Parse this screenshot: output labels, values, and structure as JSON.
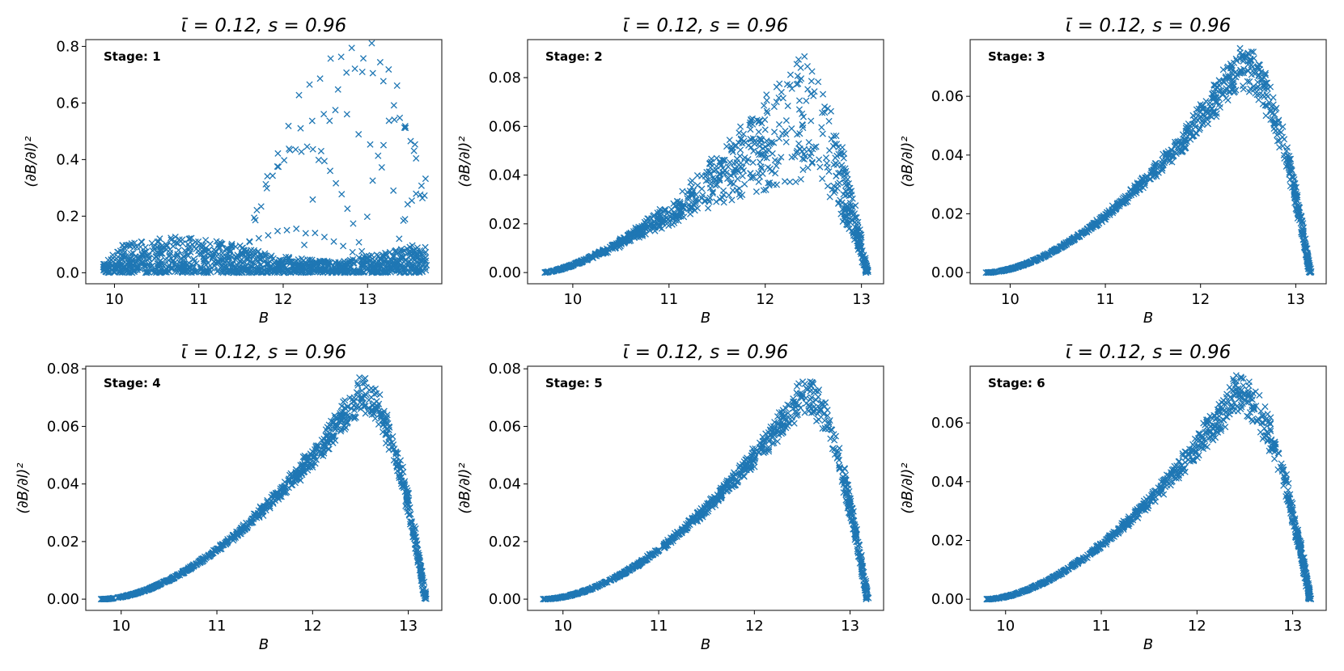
{
  "figure": {
    "marker_color": "#1f77b4",
    "marker": "x"
  },
  "chart_data": [
    {
      "type": "scatter",
      "title": "ῑ = 0.12, s = 0.96",
      "stage_label": "Stage: 1",
      "xlabel": "B",
      "ylabel": "(∂B/∂l)²",
      "xlim": [
        9.66,
        13.88
      ],
      "ylim": [
        -0.039,
        0.824
      ],
      "xticks": [
        10,
        11,
        12,
        13
      ],
      "yticks": [
        0.0,
        0.2,
        0.4,
        0.6,
        0.8
      ],
      "ydecimals": 1,
      "model": {
        "kind": "scattered",
        "low_band": {
          "n": 1100,
          "b_range": [
            9.85,
            13.7
          ],
          "envelope": [
            [
              9.85,
              0.03
            ],
            [
              10.1,
              0.1
            ],
            [
              10.7,
              0.13
            ],
            [
              11.3,
              0.11
            ],
            [
              11.9,
              0.06
            ],
            [
              12.6,
              0.04
            ],
            [
              13.2,
              0.07
            ],
            [
              13.7,
              0.11
            ]
          ]
        },
        "arcs": [
          {
            "center": 12.25,
            "halfwidth": 0.75,
            "peak": 0.44,
            "n": 22
          },
          {
            "center": 12.75,
            "halfwidth": 1.25,
            "peak": 0.76,
            "n": 20
          },
          {
            "center": 13.0,
            "halfwidth": 0.8,
            "peak": 0.78,
            "n": 16
          },
          {
            "center": 13.35,
            "halfwidth": 0.45,
            "peak": 0.54,
            "n": 14
          },
          {
            "center": 12.55,
            "halfwidth": 1.1,
            "peak": 0.57,
            "n": 16
          },
          {
            "center": 13.6,
            "halfwidth": 0.3,
            "peak": 0.28,
            "n": 12
          },
          {
            "center": 12.1,
            "halfwidth": 1.0,
            "peak": 0.15,
            "n": 18
          }
        ]
      }
    },
    {
      "type": "scatter",
      "title": "ῑ = 0.12, s = 0.96",
      "stage_label": "Stage: 2",
      "xlabel": "B",
      "ylabel": "(∂B/∂l)²",
      "xlim": [
        9.53,
        13.23
      ],
      "ylim": [
        -0.0046,
        0.0956
      ],
      "xticks": [
        10,
        11,
        12,
        13
      ],
      "yticks": [
        0.0,
        0.02,
        0.04,
        0.06,
        0.08
      ],
      "ydecimals": 2,
      "model": {
        "kind": "curve",
        "b0": 9.7,
        "bp": 12.3,
        "b1": 13.06,
        "peak": 0.064,
        "power": 1.4,
        "spread": 0.38,
        "n": 900
      }
    },
    {
      "type": "scatter",
      "title": "ῑ = 0.12, s = 0.96",
      "stage_label": "Stage: 3",
      "xlabel": "B",
      "ylabel": "(∂B/∂l)²",
      "xlim": [
        9.58,
        13.32
      ],
      "ylim": [
        -0.0038,
        0.0793
      ],
      "xticks": [
        10,
        11,
        12,
        13
      ],
      "yticks": [
        0.0,
        0.02,
        0.04,
        0.06
      ],
      "ydecimals": 2,
      "model": {
        "kind": "curve",
        "b0": 9.75,
        "bp": 12.42,
        "b1": 13.15,
        "peak": 0.07,
        "power": 1.7,
        "spread": 0.1,
        "n": 900
      }
    },
    {
      "type": "scatter",
      "title": "ῑ = 0.12, s = 0.96",
      "stage_label": "Stage: 4",
      "xlabel": "B",
      "ylabel": "(∂B/∂l)²",
      "xlim": [
        9.63,
        13.35
      ],
      "ylim": [
        -0.0039,
        0.0809
      ],
      "xticks": [
        10,
        11,
        12,
        13
      ],
      "yticks": [
        0.0,
        0.02,
        0.04,
        0.06,
        0.08
      ],
      "ydecimals": 2,
      "model": {
        "kind": "curve",
        "b0": 9.8,
        "bp": 12.5,
        "b1": 13.18,
        "peak": 0.071,
        "power": 1.75,
        "spread": 0.08,
        "n": 900
      }
    },
    {
      "type": "scatter",
      "title": "ῑ = 0.12, s = 0.96",
      "stage_label": "Stage: 5",
      "xlabel": "B",
      "ylabel": "(∂B/∂l)²",
      "xlim": [
        9.63,
        13.35
      ],
      "ylim": [
        -0.0039,
        0.0809
      ],
      "xticks": [
        10,
        11,
        12,
        13
      ],
      "yticks": [
        0.0,
        0.02,
        0.04,
        0.06,
        0.08
      ],
      "ydecimals": 2,
      "model": {
        "kind": "curve",
        "b0": 9.8,
        "bp": 12.5,
        "b1": 13.18,
        "peak": 0.071,
        "power": 1.75,
        "spread": 0.08,
        "n": 900
      }
    },
    {
      "type": "scatter",
      "title": "ῑ = 0.12, s = 0.96",
      "stage_label": "Stage: 6",
      "xlabel": "B",
      "ylabel": "(∂B/∂l)²",
      "xlim": [
        9.63,
        13.35
      ],
      "ylim": [
        -0.0038,
        0.0793
      ],
      "xticks": [
        10,
        11,
        12,
        13
      ],
      "yticks": [
        0.0,
        0.02,
        0.04,
        0.06
      ],
      "ydecimals": 2,
      "model": {
        "kind": "curve",
        "b0": 9.8,
        "bp": 12.42,
        "b1": 13.18,
        "peak": 0.07,
        "power": 1.7,
        "spread": 0.09,
        "n": 900
      }
    }
  ]
}
